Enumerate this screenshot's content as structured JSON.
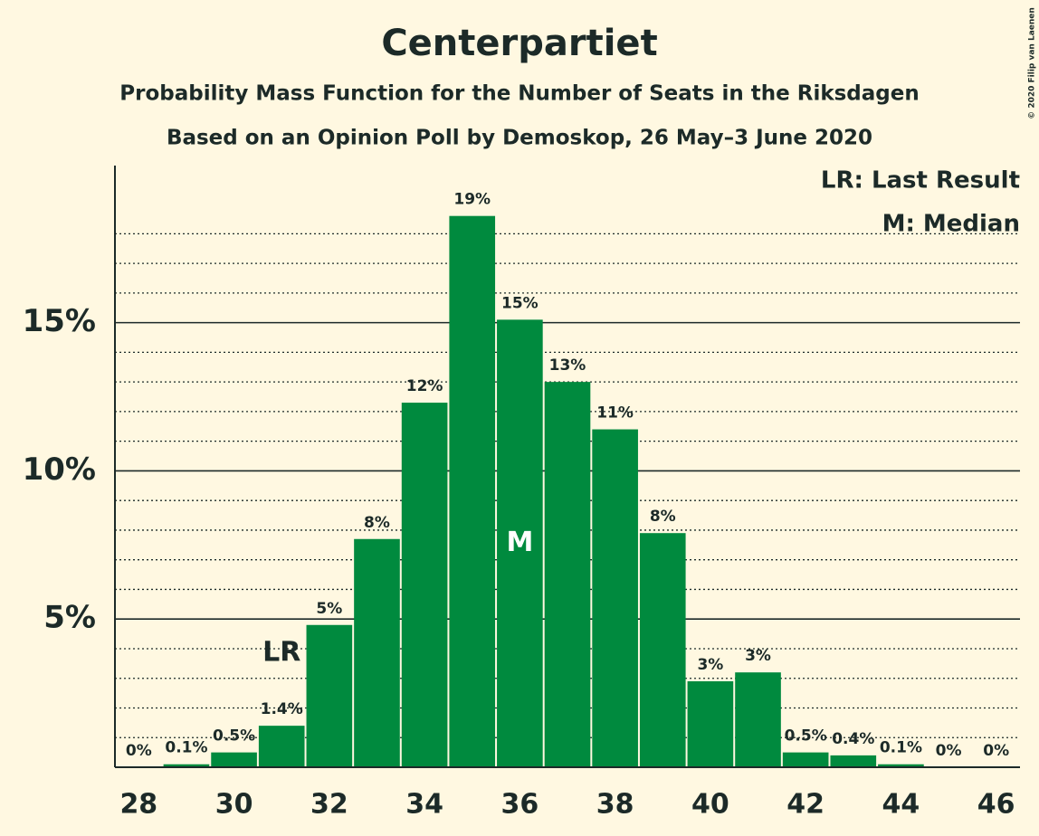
{
  "chart_data": {
    "type": "bar",
    "title": "Centerpartiet",
    "subtitle": "Probability Mass Function for the Number of Seats in the Riksdagen",
    "subtitle2": "Based on an Opinion Poll by Demoskop, 26 May–3 June 2020",
    "copyright": "© 2020 Filip van Laenen",
    "x": [
      28,
      29,
      30,
      31,
      32,
      33,
      34,
      35,
      36,
      37,
      38,
      39,
      40,
      41,
      42,
      43,
      44,
      45,
      46
    ],
    "values": [
      0,
      0.1,
      0.5,
      1.4,
      4.8,
      7.7,
      12.3,
      18.6,
      15.1,
      13.0,
      11.4,
      7.9,
      2.9,
      3.2,
      0.5,
      0.4,
      0.1,
      0,
      0
    ],
    "value_labels": [
      "0%",
      "0.1%",
      "0.5%",
      "1.4%",
      "5%",
      "8%",
      "12%",
      "19%",
      "15%",
      "13%",
      "11%",
      "8%",
      "3%",
      "3%",
      "0.5%",
      "0.4%",
      "0.1%",
      "0%",
      "0%"
    ],
    "color": "#008a3e",
    "xlim": [
      27.5,
      46.5
    ],
    "xticks": [
      28,
      30,
      32,
      34,
      36,
      38,
      40,
      42,
      44,
      46
    ],
    "ylim": [
      0,
      20.3
    ],
    "yticks": [
      {
        "value": 5,
        "label": "5%"
      },
      {
        "value": 10,
        "label": "10%"
      },
      {
        "value": 15,
        "label": "15%"
      }
    ],
    "yminorticks": [
      1,
      2,
      3,
      4,
      6,
      7,
      8,
      9,
      11,
      12,
      13,
      14,
      16,
      17,
      18
    ],
    "annotations": [
      {
        "x": 31,
        "label": "LR"
      },
      {
        "x": 36,
        "label": "M"
      }
    ],
    "legend": [
      "LR: Last Result",
      "M: Median"
    ]
  }
}
